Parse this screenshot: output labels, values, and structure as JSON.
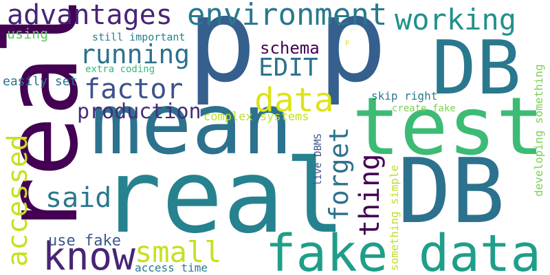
{
  "words": [
    {
      "text": "p",
      "color": "#355f8d"
    },
    {
      "text": "p",
      "color": "#355f8d"
    },
    {
      "text": "DB",
      "color": "#2a788e"
    },
    {
      "text": "test",
      "color": "#3cbb75"
    },
    {
      "text": "mean",
      "color": "#2c728e"
    },
    {
      "text": "real",
      "color": "#440154"
    },
    {
      "text": "real",
      "color": "#26828e"
    },
    {
      "text": "DB",
      "color": "#2c728e"
    },
    {
      "text": "fake data",
      "color": "#1f9e89"
    },
    {
      "text": "advantages",
      "color": "#482475"
    },
    {
      "text": "environment",
      "color": "#2a788e"
    },
    {
      "text": "working",
      "color": "#21908d"
    },
    {
      "text": "running",
      "color": "#2c728e"
    },
    {
      "text": "factor",
      "color": "#3b528b"
    },
    {
      "text": "EDIT",
      "color": "#2c728e"
    },
    {
      "text": "data",
      "color": "#dde318"
    },
    {
      "text": "production",
      "color": "#472c7a"
    },
    {
      "text": "schema",
      "color": "#440154"
    },
    {
      "text": "forget",
      "color": "#2c728e"
    },
    {
      "text": "thing",
      "color": "#440154"
    },
    {
      "text": "accessed",
      "color": "#c8e020"
    },
    {
      "text": "said",
      "color": "#2a788e"
    },
    {
      "text": "know",
      "color": "#482475"
    },
    {
      "text": "small",
      "color": "#c8e020"
    },
    {
      "text": "use fake",
      "color": "#39568c"
    },
    {
      "text": "access time",
      "color": "#2a788e"
    },
    {
      "text": "using",
      "color": "#5ec962"
    },
    {
      "text": "still important",
      "color": "#277f8e"
    },
    {
      "text": "extra coding",
      "color": "#35b779"
    },
    {
      "text": "easily set",
      "color": "#2c728e"
    },
    {
      "text": "complex systems",
      "color": "#bddf26"
    },
    {
      "text": "skip right",
      "color": "#2a788e"
    },
    {
      "text": "create fake",
      "color": "#7ad151"
    },
    {
      "text": "live DBMS",
      "color": "#3b528b"
    },
    {
      "text": "something simple",
      "color": "#bddf26"
    },
    {
      "text": "developing something",
      "color": "#7ad151"
    },
    {
      "text": "p",
      "color": "#dde318"
    }
  ]
}
